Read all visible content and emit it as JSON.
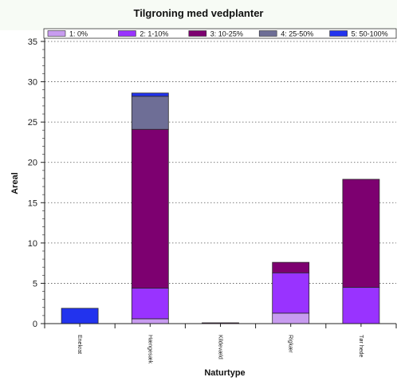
{
  "chart_data": {
    "type": "bar",
    "stacked": true,
    "title": "Tilgroning med vedplanter",
    "xlabel": "Naturtype",
    "ylabel": "Areal",
    "ylim": [
      0,
      35
    ],
    "yticks": [
      0,
      5,
      10,
      15,
      20,
      25,
      30,
      35
    ],
    "grid": true,
    "legend_position": "top",
    "categories": [
      "Enekrat",
      "Hængesæk",
      "Kildevæld",
      "Rigkær",
      "Tør hede"
    ],
    "series": [
      {
        "name": "1: 0%",
        "color": "#c89cf0",
        "values": [
          0,
          0.6,
          0,
          1.3,
          0
        ]
      },
      {
        "name": "2: 1-10%",
        "color": "#9933ff",
        "values": [
          0,
          3.8,
          0,
          5.0,
          4.5
        ]
      },
      {
        "name": "3: 10-25%",
        "color": "#7d0070",
        "values": [
          0,
          19.7,
          0.1,
          1.3,
          13.4
        ]
      },
      {
        "name": "4: 25-50%",
        "color": "#6e6e96",
        "values": [
          0,
          4.1,
          0,
          0,
          0
        ]
      },
      {
        "name": "5: 50-100%",
        "color": "#2233ee",
        "values": [
          1.9,
          0.4,
          0,
          0,
          0
        ]
      }
    ]
  }
}
